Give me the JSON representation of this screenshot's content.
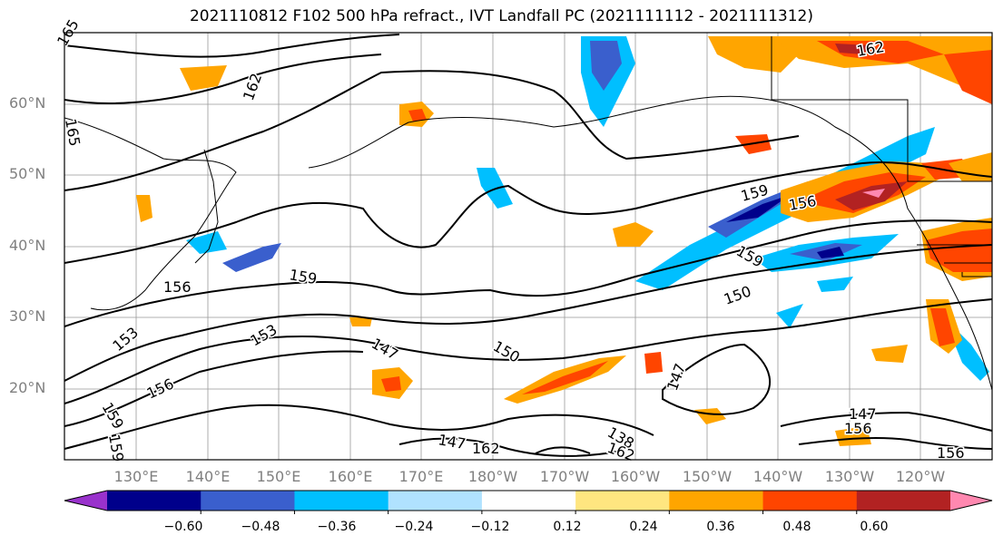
{
  "title": "2021110812 F102 500 hPa refract., IVT Landfall PC (2021111112 - 2021111312)",
  "lat_labels": [
    "60°N",
    "50°N",
    "40°N",
    "30°N",
    "20°N"
  ],
  "lon_labels": [
    "130°E",
    "140°E",
    "150°E",
    "160°E",
    "170°E",
    "180°W",
    "170°W",
    "160°W",
    "150°W",
    "140°W",
    "130°W",
    "120°W"
  ],
  "colorbar": {
    "ticks": [
      "−0.60",
      "−0.48",
      "−0.36",
      "−0.24",
      "−0.12",
      "0.12",
      "0.24",
      "0.36",
      "0.48",
      "0.60"
    ],
    "colors": [
      "#9932CC",
      "#00008B",
      "#3A5FCD",
      "#00BFFF",
      "#B0E2FF",
      "#FFFFFF",
      "#FFE680",
      "#FFA500",
      "#FF4500",
      "#B22222",
      "#FF88B0"
    ]
  },
  "contour_labels": [
    "165",
    "162",
    "165",
    "162",
    "159",
    "156",
    "159",
    "156",
    "153",
    "153",
    "156",
    "159",
    "147",
    "150",
    "150",
    "159",
    "156",
    "147",
    "147",
    "156",
    "138",
    "147",
    "162",
    "162",
    "159"
  ]
}
